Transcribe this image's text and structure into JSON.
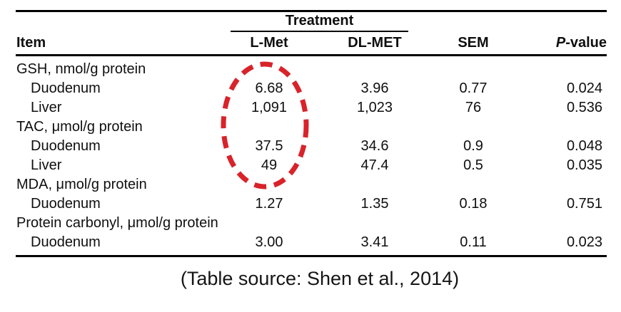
{
  "table": {
    "header": {
      "item": "Item",
      "treatment": "Treatment",
      "lmet": "L-Met",
      "dlmet": "DL-MET",
      "sem": "SEM",
      "pvalue_p": "P",
      "pvalue_rest": "-value"
    },
    "rows": [
      {
        "type": "category",
        "item": "GSH, nmol/g protein",
        "lmet": "",
        "dlmet": "",
        "sem": "",
        "pvalue": ""
      },
      {
        "type": "data",
        "item": "Duodenum",
        "lmet": "6.68",
        "dlmet": "3.96",
        "sem": "0.77",
        "pvalue": "0.024"
      },
      {
        "type": "data",
        "item": "Liver",
        "lmet": "1,091",
        "dlmet": "1,023",
        "sem": "76",
        "pvalue": "0.536"
      },
      {
        "type": "category",
        "item": "TAC, μmol/g protein",
        "lmet": "",
        "dlmet": "",
        "sem": "",
        "pvalue": ""
      },
      {
        "type": "data",
        "item": "Duodenum",
        "lmet": "37.5",
        "dlmet": "34.6",
        "sem": "0.9",
        "pvalue": "0.048"
      },
      {
        "type": "data",
        "item": "Liver",
        "lmet": "49",
        "dlmet": "47.4",
        "sem": "0.5",
        "pvalue": "0.035"
      },
      {
        "type": "category",
        "item": "MDA, μmol/g protein",
        "lmet": "",
        "dlmet": "",
        "sem": "",
        "pvalue": ""
      },
      {
        "type": "data",
        "item": "Duodenum",
        "lmet": "1.27",
        "dlmet": "1.35",
        "sem": "0.18",
        "pvalue": "0.751"
      },
      {
        "type": "category",
        "item": "Protein carbonyl, μmol/g protein",
        "lmet": "",
        "dlmet": "",
        "sem": "",
        "pvalue": ""
      },
      {
        "type": "data",
        "item": "Duodenum",
        "lmet": "3.00",
        "dlmet": "3.41",
        "sem": "0.11",
        "pvalue": "0.023"
      }
    ]
  },
  "annotation": {
    "type": "dashed-ellipse",
    "color": "#d8232a",
    "highlights": "L-Met column values for GSH and TAC rows"
  },
  "caption": "(Table source: Shen et al., 2014)"
}
